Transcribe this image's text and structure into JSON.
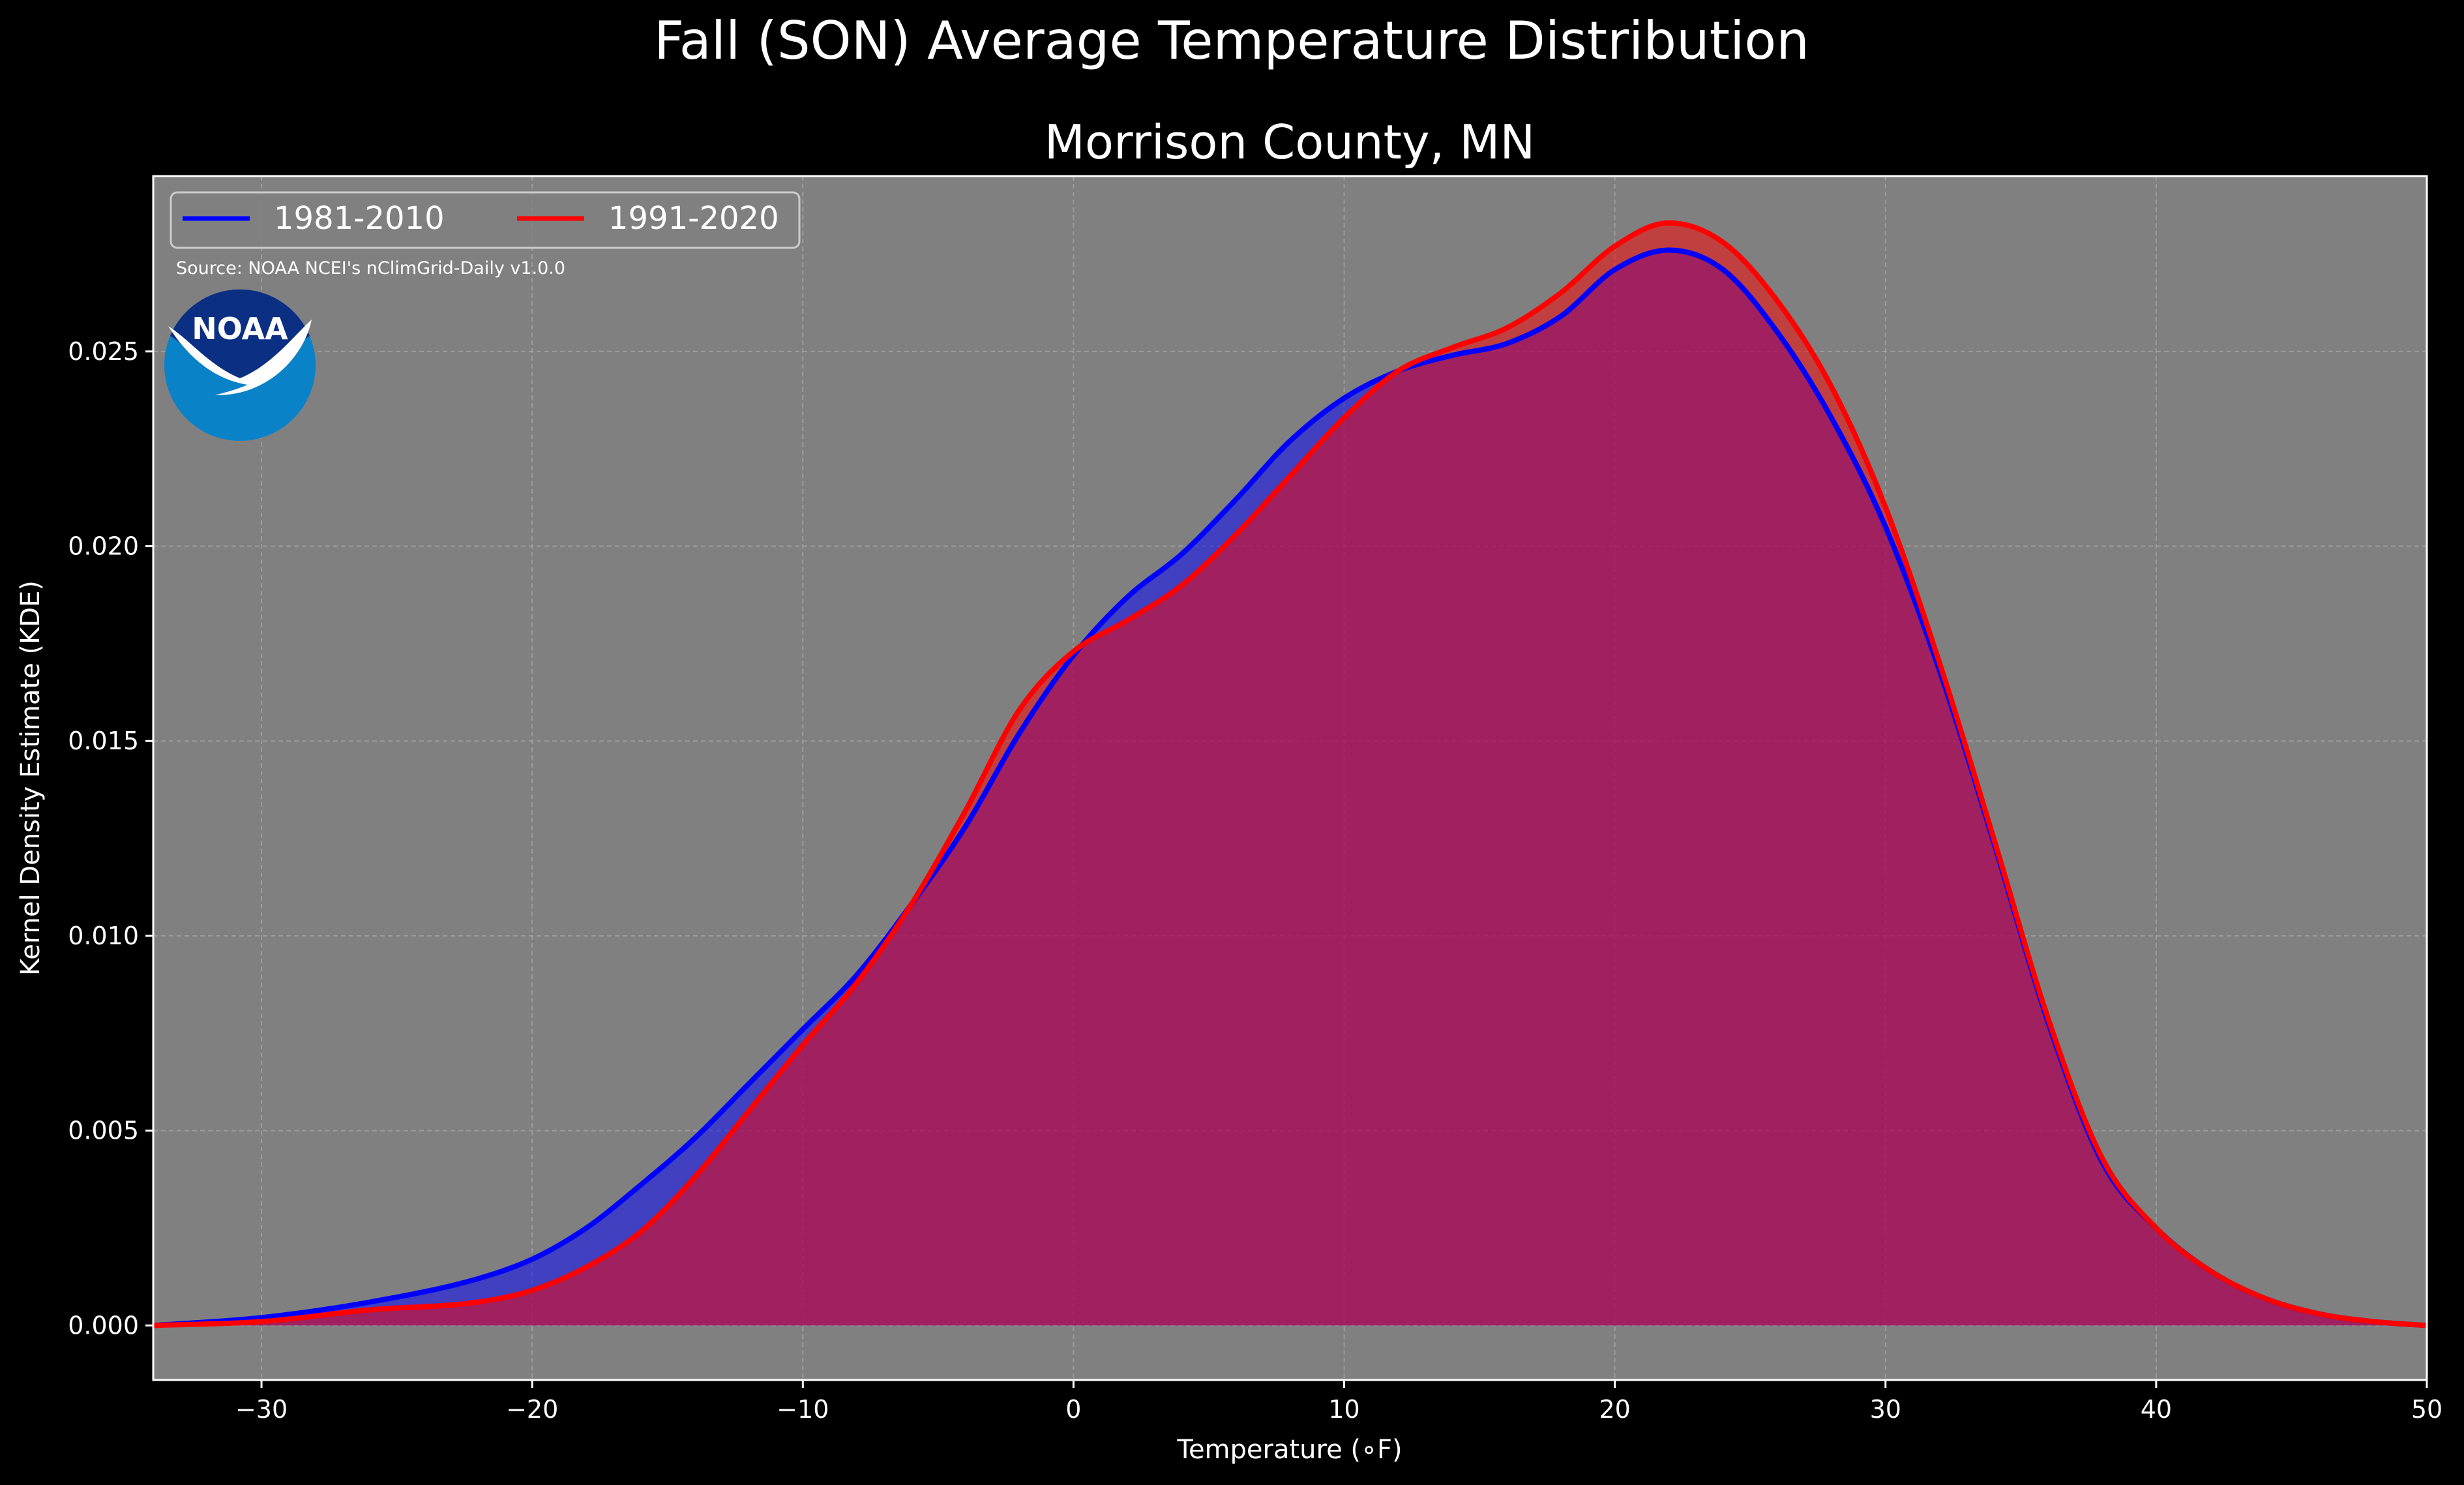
{
  "suptitle": "Fall (SON) Average Temperature Distribution",
  "chart_data": {
    "type": "area",
    "title": "Morrison County, MN",
    "xlabel": "Temperature (∘F)",
    "ylabel": "Kernel Density Estimate (KDE)",
    "xlim": [
      -34,
      50
    ],
    "ylim": [
      -0.0014,
      0.0295
    ],
    "xticks": [
      -30,
      -20,
      -10,
      0,
      10,
      20,
      30,
      40,
      50
    ],
    "xtick_labels": [
      "−30",
      "−20",
      "−10",
      "0",
      "10",
      "20",
      "30",
      "40",
      "50"
    ],
    "yticks": [
      0.0,
      0.005,
      0.01,
      0.015,
      0.02,
      0.025
    ],
    "ytick_labels": [
      "0.000",
      "0.005",
      "0.010",
      "0.015",
      "0.020",
      "0.025"
    ],
    "grid": true,
    "legend_position": "top-left",
    "background_color": "#808080",
    "annotation": "Source: NOAA NCEI's nClimGrid-Daily v1.0.0",
    "logo_text": "NOAA",
    "series": [
      {
        "name": "1981-2010",
        "color": "#0000ff",
        "fill_color": "#0000ff",
        "points": [
          [
            -34,
            0.0
          ],
          [
            -30,
            0.0002
          ],
          [
            -26,
            0.0006
          ],
          [
            -22,
            0.0012
          ],
          [
            -20,
            0.0017
          ],
          [
            -18,
            0.0025
          ],
          [
            -16,
            0.0036
          ],
          [
            -14,
            0.0048
          ],
          [
            -12,
            0.0062
          ],
          [
            -10,
            0.0076
          ],
          [
            -8,
            0.009
          ],
          [
            -6,
            0.0108
          ],
          [
            -4,
            0.0128
          ],
          [
            -2,
            0.0152
          ],
          [
            0,
            0.0172
          ],
          [
            2,
            0.0187
          ],
          [
            4,
            0.0198
          ],
          [
            6,
            0.0212
          ],
          [
            8,
            0.0227
          ],
          [
            10,
            0.0238
          ],
          [
            12,
            0.0245
          ],
          [
            14,
            0.0249
          ],
          [
            16,
            0.0252
          ],
          [
            18,
            0.0259
          ],
          [
            20,
            0.0271
          ],
          [
            22,
            0.0276
          ],
          [
            24,
            0.0271
          ],
          [
            26,
            0.0255
          ],
          [
            28,
            0.0233
          ],
          [
            30,
            0.0205
          ],
          [
            32,
            0.0168
          ],
          [
            34,
            0.0124
          ],
          [
            36,
            0.0078
          ],
          [
            38,
            0.0042
          ],
          [
            40,
            0.0025
          ],
          [
            42,
            0.0014
          ],
          [
            44,
            0.0007
          ],
          [
            46,
            0.0003
          ],
          [
            48,
            0.0001
          ],
          [
            50,
            0.0
          ]
        ]
      },
      {
        "name": "1991-2020",
        "color": "#ff0000",
        "fill_color": "#ff0000",
        "points": [
          [
            -34,
            0.0
          ],
          [
            -30,
            0.0001
          ],
          [
            -26,
            0.0004
          ],
          [
            -22,
            0.0006
          ],
          [
            -20,
            0.0009
          ],
          [
            -18,
            0.0015
          ],
          [
            -16,
            0.0024
          ],
          [
            -14,
            0.0038
          ],
          [
            -12,
            0.0055
          ],
          [
            -10,
            0.0072
          ],
          [
            -8,
            0.0088
          ],
          [
            -6,
            0.0108
          ],
          [
            -4,
            0.0132
          ],
          [
            -2,
            0.0158
          ],
          [
            0,
            0.0173
          ],
          [
            2,
            0.0181
          ],
          [
            4,
            0.019
          ],
          [
            6,
            0.0203
          ],
          [
            8,
            0.0218
          ],
          [
            10,
            0.0233
          ],
          [
            12,
            0.0245
          ],
          [
            14,
            0.0251
          ],
          [
            16,
            0.0256
          ],
          [
            18,
            0.0265
          ],
          [
            20,
            0.0277
          ],
          [
            22,
            0.0283
          ],
          [
            24,
            0.0278
          ],
          [
            26,
            0.0263
          ],
          [
            28,
            0.0241
          ],
          [
            30,
            0.021
          ],
          [
            32,
            0.017
          ],
          [
            34,
            0.0125
          ],
          [
            36,
            0.0079
          ],
          [
            38,
            0.0043
          ],
          [
            40,
            0.0025
          ],
          [
            42,
            0.0014
          ],
          [
            44,
            0.0007
          ],
          [
            46,
            0.0003
          ],
          [
            48,
            0.0001
          ],
          [
            50,
            0.0
          ]
        ]
      }
    ]
  }
}
